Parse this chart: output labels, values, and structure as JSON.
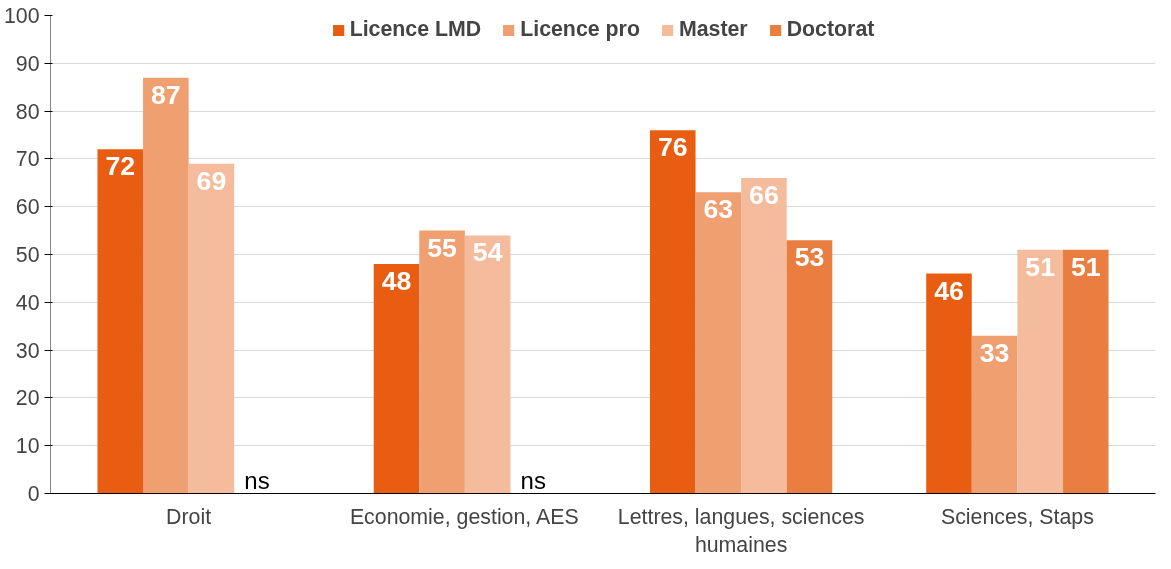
{
  "chart_data": {
    "type": "bar",
    "categories": [
      "Droit",
      "Economie, gestion, AES",
      "Lettres, langues, sciences humaines",
      "Sciences, Staps"
    ],
    "series": [
      {
        "name": "Licence LMD",
        "color": "#e85d12",
        "values": [
          72,
          48,
          76,
          46
        ],
        "value_labels": [
          "72",
          "48",
          "76",
          "46"
        ]
      },
      {
        "name": "Licence pro",
        "color": "#ef9f70",
        "values": [
          87,
          55,
          63,
          33
        ],
        "value_labels": [
          "87",
          "55",
          "63",
          "33"
        ]
      },
      {
        "name": "Master",
        "color": "#f4bc9d",
        "values": [
          69,
          54,
          66,
          51
        ],
        "value_labels": [
          "69",
          "54",
          "66",
          "51"
        ]
      },
      {
        "name": "Doctorat",
        "color": "#ea7d40",
        "values": [
          null,
          null,
          53,
          51
        ],
        "value_labels": [
          "ns",
          "ns",
          "53",
          "51"
        ]
      }
    ],
    "ylim": [
      0,
      100
    ],
    "yticks": [
      0,
      10,
      20,
      30,
      40,
      50,
      60,
      70,
      80,
      90,
      100
    ],
    "grid": "y",
    "legend": "top"
  }
}
